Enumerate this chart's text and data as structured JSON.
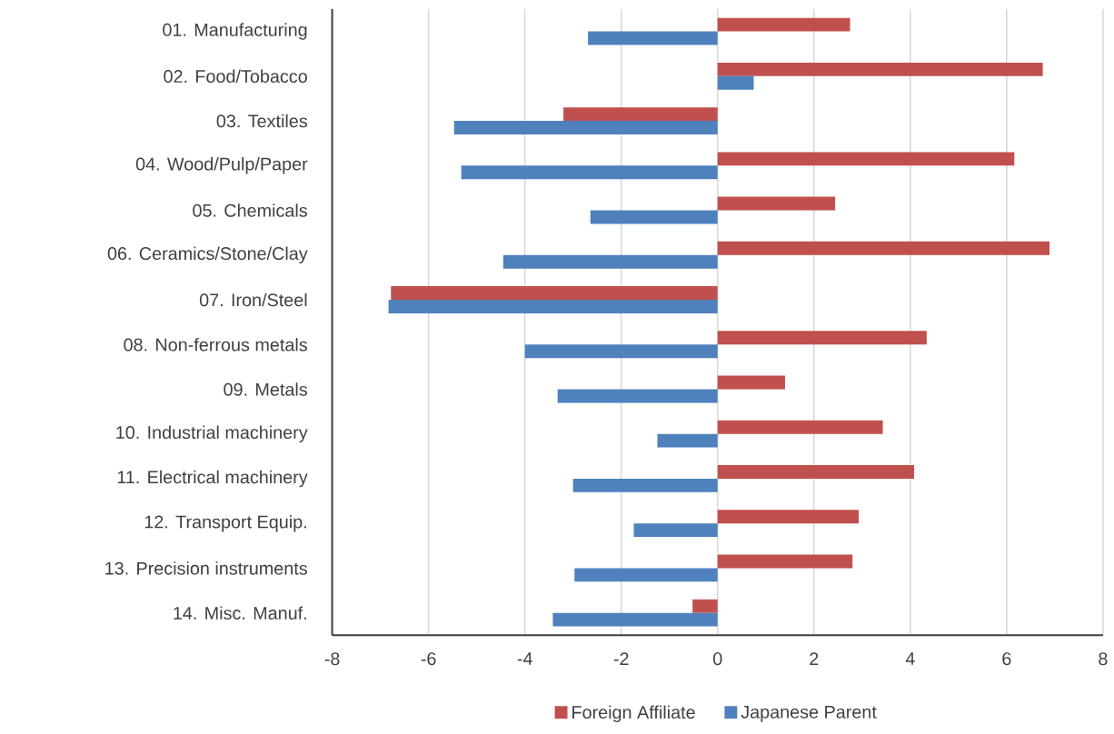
{
  "chart_data": {
    "type": "bar",
    "orientation": "horizontal",
    "categories": [
      "01. Manufacturing",
      "02. Food/Tobacco",
      "03. Textiles",
      "04. Wood/Pulp/Paper",
      "05. Chemicals",
      "06. Ceramics/Stone/Clay",
      "07. Iron/Steel",
      "08. Non-ferrous metals",
      "09. Metals",
      "10. Industrial machinery",
      "11. Electrical machinery",
      "12. Transport Equip.",
      "13. Precision instruments",
      "14. Misc. Manuf."
    ],
    "series": [
      {
        "name": "Foreign Affiliate",
        "color": "#c0504d",
        "values": [
          2.75,
          6.75,
          -3.2,
          6.16,
          2.44,
          6.89,
          -6.78,
          4.34,
          1.4,
          3.43,
          4.08,
          2.93,
          2.8,
          -0.52
        ]
      },
      {
        "name": "Japanese Parent",
        "color": "#4f81bd",
        "values": [
          -2.69,
          0.75,
          -5.47,
          -5.32,
          -2.64,
          -4.45,
          -6.83,
          -4.0,
          -3.32,
          -1.25,
          -3.0,
          -1.74,
          -2.97,
          -3.42
        ]
      }
    ],
    "xlim": [
      -8,
      8
    ],
    "xticks": [
      -8,
      -6,
      -4,
      -2,
      0,
      2,
      4,
      6,
      8
    ],
    "grid": "x",
    "legend": "bottom"
  }
}
